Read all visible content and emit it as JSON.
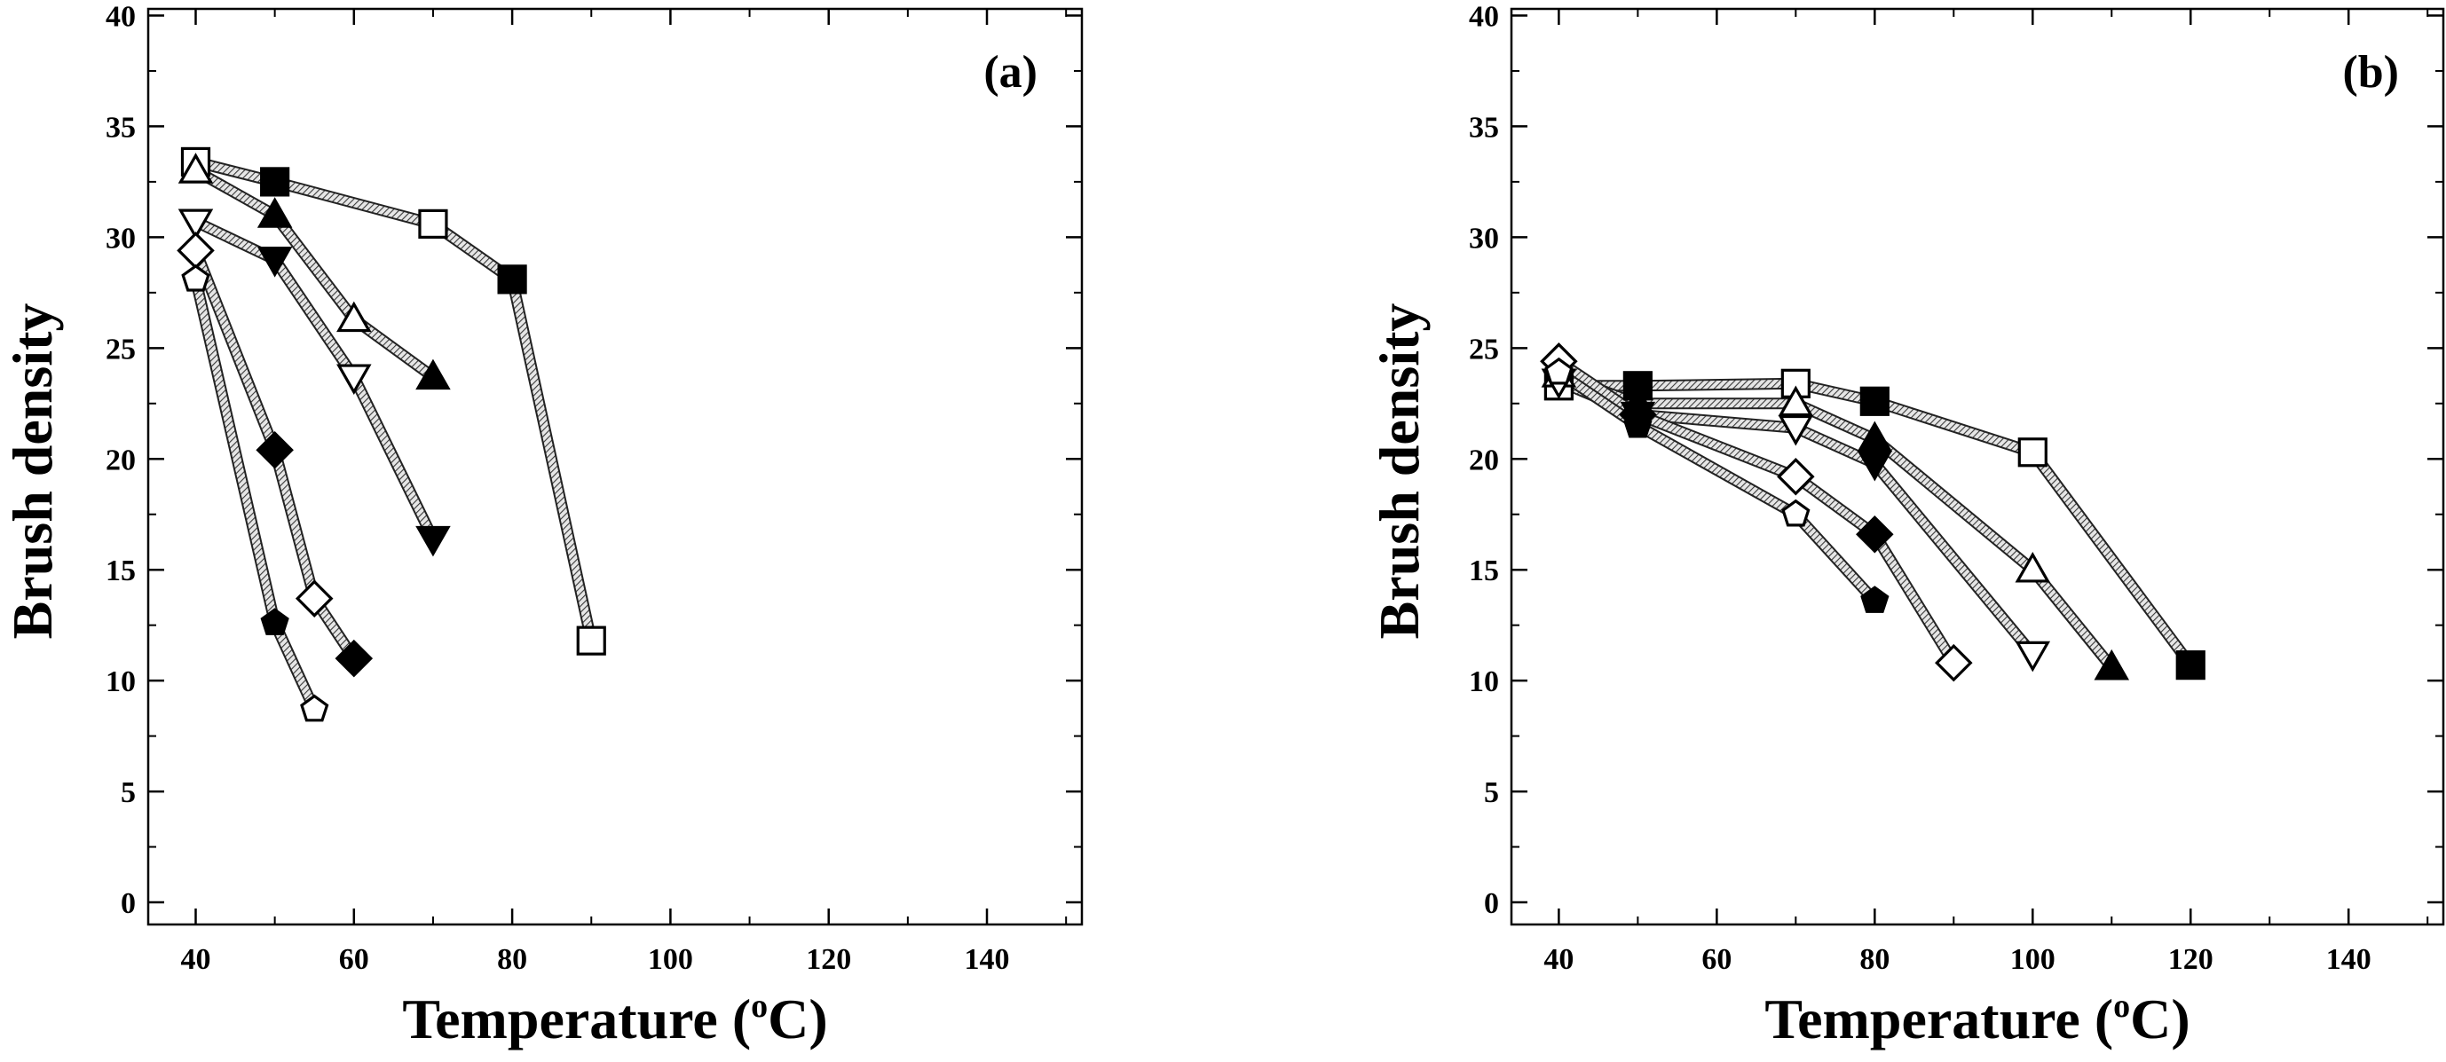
{
  "chart_data": [
    {
      "type": "line",
      "panel_label": "(a)",
      "xlabel": "Temperature",
      "xlabel_unit_sup": "o",
      "xlabel_unit": "C",
      "xlabel_open": "(",
      "xlabel_close": ")",
      "ylabel": "Brush density",
      "xlim": [
        34,
        152
      ],
      "ylim": [
        -1,
        40.3
      ],
      "xticks": [
        40,
        60,
        80,
        100,
        120,
        140
      ],
      "yticks": [
        0,
        5,
        10,
        15,
        20,
        25,
        30,
        35,
        40
      ],
      "grid": false,
      "series": [
        {
          "marker": "square",
          "fill": "alternating",
          "x": [
            40,
            50,
            70,
            80,
            90
          ],
          "y": [
            33.4,
            32.5,
            30.6,
            28.1,
            11.8
          ]
        },
        {
          "marker": "triangle-up",
          "fill": "alternating",
          "x": [
            40,
            50,
            60,
            70
          ],
          "y": [
            33.0,
            31.0,
            26.3,
            23.7
          ]
        },
        {
          "marker": "triangle-down",
          "fill": "alternating",
          "x": [
            40,
            50,
            60,
            70
          ],
          "y": [
            30.7,
            29.0,
            23.7,
            16.4
          ]
        },
        {
          "marker": "diamond",
          "fill": "alternating",
          "x": [
            40,
            50,
            55,
            60
          ],
          "y": [
            29.4,
            20.4,
            13.7,
            11.0
          ]
        },
        {
          "marker": "pentagon",
          "fill": "alternating",
          "x": [
            40,
            50,
            55
          ],
          "y": [
            28.1,
            12.6,
            8.7
          ]
        }
      ]
    },
    {
      "type": "line",
      "panel_label": "(b)",
      "xlabel": "Temperature",
      "xlabel_unit_sup": "o",
      "xlabel_unit": "C",
      "xlabel_open": "(",
      "xlabel_close": ")",
      "ylabel": "Brush density",
      "xlim": [
        34,
        152
      ],
      "ylim": [
        -1,
        40.3
      ],
      "xticks": [
        40,
        60,
        80,
        100,
        120,
        140
      ],
      "yticks": [
        0,
        5,
        10,
        15,
        20,
        25,
        30,
        35,
        40
      ],
      "grid": false,
      "series": [
        {
          "marker": "square",
          "fill": "alternating",
          "x": [
            40,
            50,
            70,
            80,
            100,
            120
          ],
          "y": [
            23.3,
            23.3,
            23.4,
            22.6,
            20.3,
            10.7
          ]
        },
        {
          "marker": "triangle-up",
          "fill": "alternating",
          "x": [
            40,
            50,
            70,
            80,
            100,
            110
          ],
          "y": [
            23.8,
            22.5,
            22.5,
            20.9,
            15.0,
            10.6
          ]
        },
        {
          "marker": "triangle-down",
          "fill": "alternating",
          "x": [
            40,
            50,
            70,
            80,
            100
          ],
          "y": [
            23.5,
            22.0,
            21.4,
            19.8,
            11.2
          ]
        },
        {
          "marker": "diamond",
          "fill": "alternating",
          "x": [
            40,
            50,
            70,
            80,
            90
          ],
          "y": [
            24.4,
            22.0,
            19.2,
            16.6,
            10.8
          ]
        },
        {
          "marker": "pentagon",
          "fill": "alternating",
          "x": [
            40,
            50,
            70,
            80
          ],
          "y": [
            23.9,
            21.5,
            17.5,
            13.6
          ]
        }
      ]
    }
  ],
  "colors": {
    "line": "#555555",
    "marker_stroke": "#000000",
    "marker_filled": "#000000",
    "marker_open": "#ffffff"
  }
}
